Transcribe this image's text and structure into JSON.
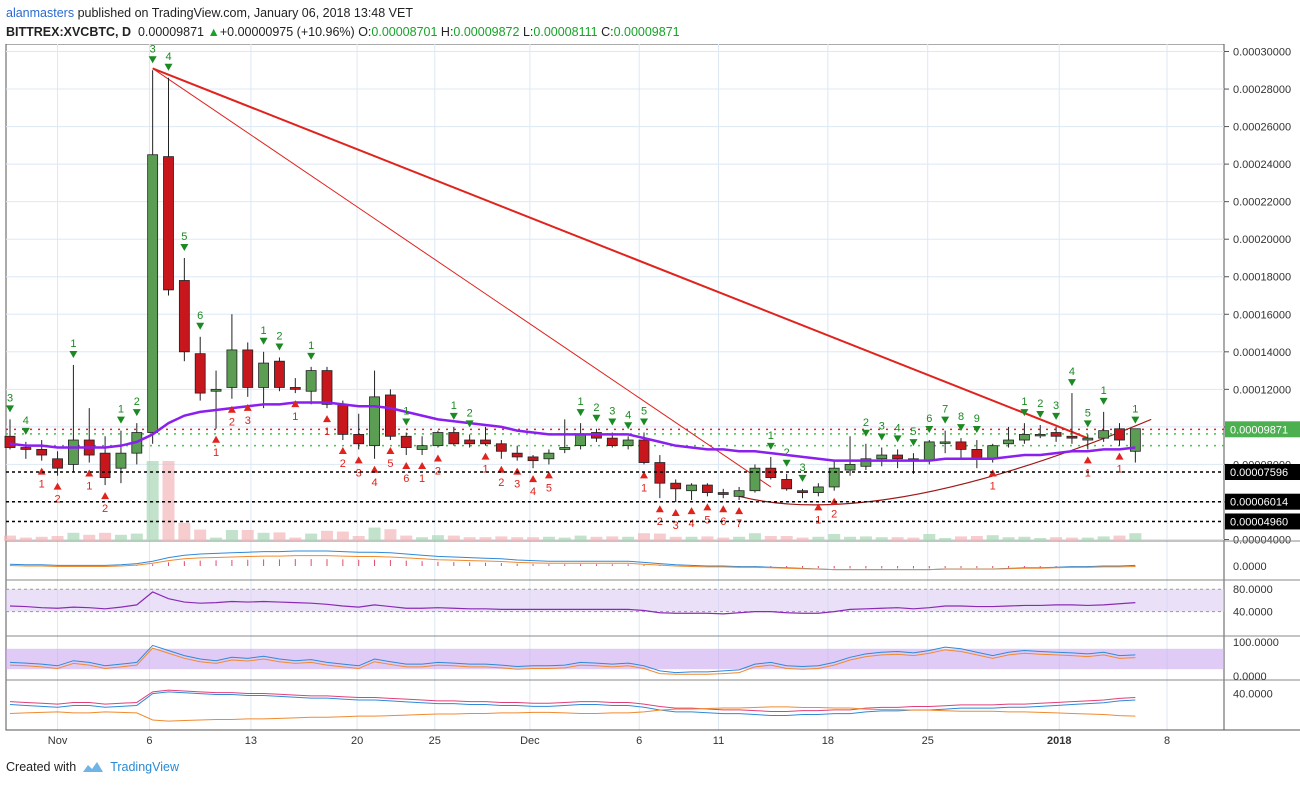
{
  "header": {
    "author": "alanmasters",
    "published_text": "published on TradingView.com, January 06, 2018 13:48 VET",
    "symbol": "BITTREX:XVCBTC, D",
    "last": "0.00009871",
    "change": "+0.00000975 (+10.96%)",
    "o_label": "O:",
    "o": "0.00008701",
    "h_label": "H:",
    "h": "0.00009872",
    "l_label": "L:",
    "l": "0.00008111",
    "c_label": "C:",
    "c": "0.00009871"
  },
  "footer": {
    "created_with": "Created with",
    "brand": "TradingView"
  },
  "colors": {
    "up": "#5b9e53",
    "down": "#c8161d",
    "trend": "#e0231d",
    "ma": "#8a1ff0",
    "grid": "#dde8f5",
    "axis_text": "#333333"
  },
  "chart_data": {
    "type": "candlestick",
    "title": "BITTREX:XVCBTC, D",
    "xlabel": "",
    "ylabel": "",
    "ylim": [
      3.92e-05,
      0.000304
    ],
    "y_ticks": [
      "0.00004000",
      "0.00006000",
      "0.00008000",
      "0.00010000",
      "0.00012000",
      "0.00014000",
      "0.00016000",
      "0.00018000",
      "0.00020000",
      "0.00022000",
      "0.00024000",
      "0.00026000",
      "0.00028000",
      "0.00030000"
    ],
    "x_ticks": [
      "Nov",
      "6",
      "13",
      "20",
      "25",
      "Dec",
      "6",
      "11",
      "18",
      "25",
      "2018",
      "8"
    ],
    "price_labels": [
      {
        "value": "0.00009871",
        "style": "current"
      },
      {
        "value": "0.00007596",
        "style": "level"
      },
      {
        "value": "0.00006014",
        "style": "level"
      },
      {
        "value": "0.00004960",
        "style": "level"
      }
    ],
    "candles": [
      [
        9.5e-05,
        0.000104,
        8.8e-05,
        8.9e-05
      ],
      [
        8.9e-05,
        9.2e-05,
        8.3e-05,
        8.8e-05
      ],
      [
        8.8e-05,
        9.3e-05,
        8.2e-05,
        8.5e-05
      ],
      [
        8.3e-05,
        8.7e-05,
        7.4e-05,
        7.8e-05
      ],
      [
        8e-05,
        0.000133,
        7.6e-05,
        9.3e-05
      ],
      [
        9.3e-05,
        0.00011,
        8.1e-05,
        8.5e-05
      ],
      [
        8.6e-05,
        9.5e-05,
        6.9e-05,
        7.3e-05
      ],
      [
        7.8e-05,
        9.8e-05,
        7e-05,
        8.6e-05
      ],
      [
        8.6e-05,
        0.000102,
        8e-05,
        9.7e-05
      ],
      [
        9.7e-05,
        0.00029,
        9.1e-05,
        0.000245
      ],
      [
        0.000244,
        0.000286,
        0.00017,
        0.000173
      ],
      [
        0.000178,
        0.00019,
        0.000135,
        0.00014
      ],
      [
        0.000139,
        0.000148,
        0.000114,
        0.000118
      ],
      [
        0.000119,
        0.00013,
        9.9e-05,
        0.00012
      ],
      [
        0.000121,
        0.00016,
        0.000115,
        0.000141
      ],
      [
        0.000141,
        0.000145,
        0.000116,
        0.000121
      ],
      [
        0.000121,
        0.00014,
        0.00011,
        0.000134
      ],
      [
        0.000135,
        0.000137,
        0.000119,
        0.000121
      ],
      [
        0.000121,
        0.000126,
        0.000118,
        0.00012
      ],
      [
        0.000119,
        0.000132,
        0.000112,
        0.00013
      ],
      [
        0.00013,
        0.000132,
        0.00011,
        0.000112
      ],
      [
        0.000112,
        0.000114,
        9.3e-05,
        9.6e-05
      ],
      [
        9.6e-05,
        0.000107,
        8.8e-05,
        9.1e-05
      ],
      [
        9e-05,
        0.00013,
        8.3e-05,
        0.000116
      ],
      [
        0.000117,
        0.00012,
        9.3e-05,
        9.5e-05
      ],
      [
        9.5e-05,
        9.7e-05,
        8.5e-05,
        8.9e-05
      ],
      [
        8.8e-05,
        9.5e-05,
        8.5e-05,
        9e-05
      ],
      [
        9e-05,
        9.8e-05,
        8.9e-05,
        9.7e-05
      ],
      [
        9.7e-05,
        0.0001,
        9e-05,
        9.1e-05
      ],
      [
        9.3e-05,
        9.6e-05,
        8.9e-05,
        9.1e-05
      ],
      [
        9.3e-05,
        0.0001,
        9e-05,
        9.1e-05
      ],
      [
        9.1e-05,
        9.3e-05,
        8.3e-05,
        8.7e-05
      ],
      [
        8.6e-05,
        9e-05,
        8.2e-05,
        8.4e-05
      ],
      [
        8.4e-05,
        8.5e-05,
        7.8e-05,
        8.2e-05
      ],
      [
        8.3e-05,
        8.8e-05,
        8e-05,
        8.6e-05
      ],
      [
        8.8e-05,
        0.000104,
        8.6e-05,
        8.9e-05
      ],
      [
        9e-05,
        0.000102,
        8.8e-05,
        9.6e-05
      ],
      [
        9.7e-05,
        9.9e-05,
        9.2e-05,
        9.4e-05
      ],
      [
        9.4e-05,
        9.7e-05,
        8.9e-05,
        9e-05
      ],
      [
        9e-05,
        9.5e-05,
        8.8e-05,
        9.3e-05
      ],
      [
        9.3e-05,
        9.7e-05,
        8e-05,
        8.1e-05
      ],
      [
        8.1e-05,
        8.5e-05,
        6.2e-05,
        7e-05
      ],
      [
        7e-05,
        7.2e-05,
        6e-05,
        6.7e-05
      ],
      [
        6.6e-05,
        7e-05,
        6.1e-05,
        6.9e-05
      ],
      [
        6.9e-05,
        7e-05,
        6.3e-05,
        6.5e-05
      ],
      [
        6.5e-05,
        6.7e-05,
        6.2e-05,
        6.4e-05
      ],
      [
        6.3e-05,
        6.8e-05,
        6.1e-05,
        6.6e-05
      ],
      [
        6.6e-05,
        8e-05,
        6.5e-05,
        7.8e-05
      ],
      [
        7.8e-05,
        8.4e-05,
        7.2e-05,
        7.3e-05
      ],
      [
        7.2e-05,
        7.5e-05,
        6.6e-05,
        6.7e-05
      ],
      [
        6.6e-05,
        6.7e-05,
        6.2e-05,
        6.5e-05
      ],
      [
        6.5e-05,
        7e-05,
        6.3e-05,
        6.8e-05
      ],
      [
        6.8e-05,
        8.2e-05,
        6.6e-05,
        7.8e-05
      ],
      [
        7.7e-05,
        9.5e-05,
        7.4e-05,
        8e-05
      ],
      [
        7.9e-05,
        9.1e-05,
        7.7e-05,
        8.3e-05
      ],
      [
        8.3e-05,
        8.9e-05,
        7.9e-05,
        8.5e-05
      ],
      [
        8.5e-05,
        8.8e-05,
        7.8e-05,
        8.3e-05
      ],
      [
        8.3e-05,
        8.6e-05,
        7.5e-05,
        8.2e-05
      ],
      [
        8.2e-05,
        9.3e-05,
        8e-05,
        9.2e-05
      ],
      [
        9.2e-05,
        9.8e-05,
        8.6e-05,
        9.2e-05
      ],
      [
        9.2e-05,
        9.4e-05,
        8.3e-05,
        8.8e-05
      ],
      [
        8.8e-05,
        9.3e-05,
        7.8e-05,
        8.3e-05
      ],
      [
        8.3e-05,
        9.1e-05,
        8.1e-05,
        9e-05
      ],
      [
        9.1e-05,
        0.0001,
        8.9e-05,
        9.3e-05
      ],
      [
        9.3e-05,
        0.000102,
        9.1e-05,
        9.6e-05
      ],
      [
        9.6e-05,
        0.000101,
        9.4e-05,
        9.6e-05
      ],
      [
        9.7e-05,
        0.0001,
        9.2e-05,
        9.5e-05
      ],
      [
        9.5e-05,
        0.000118,
        9.1e-05,
        9.4e-05
      ],
      [
        9.3e-05,
        9.6e-05,
        8.8e-05,
        9.4e-05
      ],
      [
        9.4e-05,
        0.000108,
        9.2e-05,
        9.8e-05
      ],
      [
        9.9e-05,
        0.000102,
        9e-05,
        9.3e-05
      ],
      [
        8.7e-05,
        9.8e-05,
        8.1e-05,
        9.9e-05
      ]
    ],
    "moving_average": [
      9.1e-05,
      9e-05,
      9e-05,
      8.9e-05,
      8.9e-05,
      8.9e-05,
      8.9e-05,
      9e-05,
      9.2e-05,
      9.6e-05,
      0.000102,
      0.000106,
      0.000108,
      0.000109,
      0.00011,
      0.000111,
      0.000112,
      0.000112,
      0.000113,
      0.000113,
      0.000113,
      0.000112,
      0.000111,
      0.000111,
      0.00011,
      0.000108,
      0.000106,
      0.000104,
      0.000103,
      0.000102,
      0.000101,
      0.0001,
      9.8e-05,
      9.7e-05,
      9.6e-05,
      9.6e-05,
      9.6e-05,
      9.6e-05,
      9.6e-05,
      9.6e-05,
      9.4e-05,
      9.2e-05,
      9e-05,
      8.9e-05,
      8.8e-05,
      8.8e-05,
      8.7e-05,
      8.7e-05,
      8.6e-05,
      8.5e-05,
      8.4e-05,
      8.3e-05,
      8.2e-05,
      8.2e-05,
      8.2e-05,
      8.2e-05,
      8.2e-05,
      8.2e-05,
      8.2e-05,
      8.3e-05,
      8.3e-05,
      8.3e-05,
      8.3e-05,
      8.4e-05,
      8.5e-05,
      8.5e-05,
      8.6e-05,
      8.7e-05,
      8.7e-05,
      8.8e-05,
      8.8e-05,
      8.9e-05
    ],
    "seq_up": [
      {
        "i": 0,
        "n": "3"
      },
      {
        "i": 1,
        "n": "4"
      },
      {
        "i": 4,
        "n": "1"
      },
      {
        "i": 7,
        "n": "1"
      },
      {
        "i": 8,
        "n": "2"
      },
      {
        "i": 9,
        "n": "3"
      },
      {
        "i": 10,
        "n": "4"
      },
      {
        "i": 11,
        "n": "5"
      },
      {
        "i": 12,
        "n": "6"
      },
      {
        "i": 16,
        "n": "1"
      },
      {
        "i": 17,
        "n": "2"
      },
      {
        "i": 19,
        "n": "1"
      },
      {
        "i": 25,
        "n": "1"
      },
      {
        "i": 28,
        "n": "1"
      },
      {
        "i": 29,
        "n": "2"
      },
      {
        "i": 36,
        "n": "1"
      },
      {
        "i": 37,
        "n": "2"
      },
      {
        "i": 38,
        "n": "3"
      },
      {
        "i": 39,
        "n": "4"
      },
      {
        "i": 40,
        "n": "5"
      },
      {
        "i": 48,
        "n": "1"
      },
      {
        "i": 49,
        "n": "2"
      },
      {
        "i": 50,
        "n": "3"
      },
      {
        "i": 54,
        "n": "2"
      },
      {
        "i": 55,
        "n": "3"
      },
      {
        "i": 56,
        "n": "4"
      },
      {
        "i": 57,
        "n": "5"
      },
      {
        "i": 58,
        "n": "6"
      },
      {
        "i": 59,
        "n": "7"
      },
      {
        "i": 60,
        "n": "8"
      },
      {
        "i": 61,
        "n": "9"
      },
      {
        "i": 64,
        "n": "1"
      },
      {
        "i": 65,
        "n": "2"
      },
      {
        "i": 66,
        "n": "3"
      },
      {
        "i": 67,
        "n": "4"
      },
      {
        "i": 68,
        "n": "5"
      },
      {
        "i": 69,
        "n": "1"
      },
      {
        "i": 71,
        "n": "1"
      }
    ],
    "seq_down": [
      {
        "i": 2,
        "n": "1"
      },
      {
        "i": 3,
        "n": "2"
      },
      {
        "i": 5,
        "n": "1"
      },
      {
        "i": 6,
        "n": "2"
      },
      {
        "i": 13,
        "n": "1"
      },
      {
        "i": 14,
        "n": "2"
      },
      {
        "i": 15,
        "n": "3"
      },
      {
        "i": 18,
        "n": "1"
      },
      {
        "i": 20,
        "n": "1"
      },
      {
        "i": 21,
        "n": "2"
      },
      {
        "i": 22,
        "n": "3"
      },
      {
        "i": 23,
        "n": "4"
      },
      {
        "i": 24,
        "n": "5"
      },
      {
        "i": 25,
        "n": "6"
      },
      {
        "i": 26,
        "n": "1"
      },
      {
        "i": 27,
        "n": "2"
      },
      {
        "i": 30,
        "n": "1"
      },
      {
        "i": 31,
        "n": "2"
      },
      {
        "i": 32,
        "n": "3"
      },
      {
        "i": 33,
        "n": "4"
      },
      {
        "i": 34,
        "n": "5"
      },
      {
        "i": 40,
        "n": "1"
      },
      {
        "i": 41,
        "n": "2"
      },
      {
        "i": 42,
        "n": "3"
      },
      {
        "i": 43,
        "n": "4"
      },
      {
        "i": 44,
        "n": "5"
      },
      {
        "i": 45,
        "n": "6"
      },
      {
        "i": 46,
        "n": "7"
      },
      {
        "i": 51,
        "n": "1"
      },
      {
        "i": 52,
        "n": "2"
      },
      {
        "i": 62,
        "n": "1"
      },
      {
        "i": 68,
        "n": "1"
      },
      {
        "i": 70,
        "n": "1"
      }
    ],
    "trendlines": [
      {
        "from": [
          9,
          0.000291
        ],
        "to": [
          68,
          9.4e-05
        ],
        "width": 2
      },
      {
        "from": [
          9,
          0.000291
        ],
        "to": [
          48,
          6.8e-05
        ],
        "width": 1
      }
    ],
    "macd_panel": {
      "zero_label": "0.0000"
    },
    "rsi_panel": {
      "ticks": [
        "80.0000",
        "40.0000"
      ],
      "upper": 80,
      "lower": 40,
      "values": [
        50,
        49,
        47,
        46,
        48,
        47,
        45,
        48,
        52,
        75,
        63,
        57,
        55,
        56,
        58,
        57,
        58,
        57,
        56,
        55,
        53,
        50,
        48,
        52,
        49,
        46,
        46,
        47,
        46,
        45,
        45,
        44,
        44,
        44,
        44,
        44,
        44,
        44,
        44,
        44,
        42,
        38,
        37,
        37,
        37,
        36,
        38,
        40,
        40,
        38,
        37,
        37,
        40,
        44,
        45,
        46,
        47,
        45,
        47,
        50,
        50,
        49,
        49,
        50,
        51,
        51,
        52,
        52,
        51,
        52,
        54,
        56
      ]
    },
    "stoch_panel": {
      "ticks": [
        "100.0000",
        "0.0000"
      ],
      "upper": 80,
      "lower": 20,
      "values": [
        40,
        38,
        35,
        30,
        45,
        40,
        30,
        35,
        40,
        90,
        75,
        60,
        50,
        45,
        55,
        52,
        58,
        50,
        45,
        48,
        40,
        35,
        30,
        50,
        42,
        35,
        35,
        40,
        38,
        35,
        35,
        32,
        28,
        30,
        30,
        32,
        40,
        38,
        35,
        38,
        30,
        15,
        10,
        12,
        12,
        15,
        18,
        35,
        40,
        30,
        28,
        30,
        40,
        55,
        65,
        70,
        72,
        68,
        75,
        85,
        80,
        70,
        60,
        70,
        75,
        72,
        70,
        68,
        65,
        70,
        60,
        62
      ]
    },
    "dmi_panel": {
      "ticks": [
        "40.0000"
      ],
      "adx": [
        28,
        27,
        26,
        25,
        27,
        27,
        25,
        26,
        27,
        40,
        42,
        41,
        40,
        39,
        39,
        38,
        38,
        37,
        36,
        35,
        35,
        34,
        33,
        33,
        32,
        31,
        30,
        29,
        29,
        28,
        28,
        27,
        27,
        26,
        26,
        27,
        28,
        28,
        27,
        27,
        25,
        22,
        20,
        20,
        19,
        18,
        18,
        17,
        16,
        16,
        17,
        17,
        18,
        18,
        20,
        21,
        21,
        22,
        22,
        23,
        24,
        24,
        24,
        25,
        25,
        26,
        27,
        28,
        29,
        30,
        32,
        33
      ]
    }
  }
}
